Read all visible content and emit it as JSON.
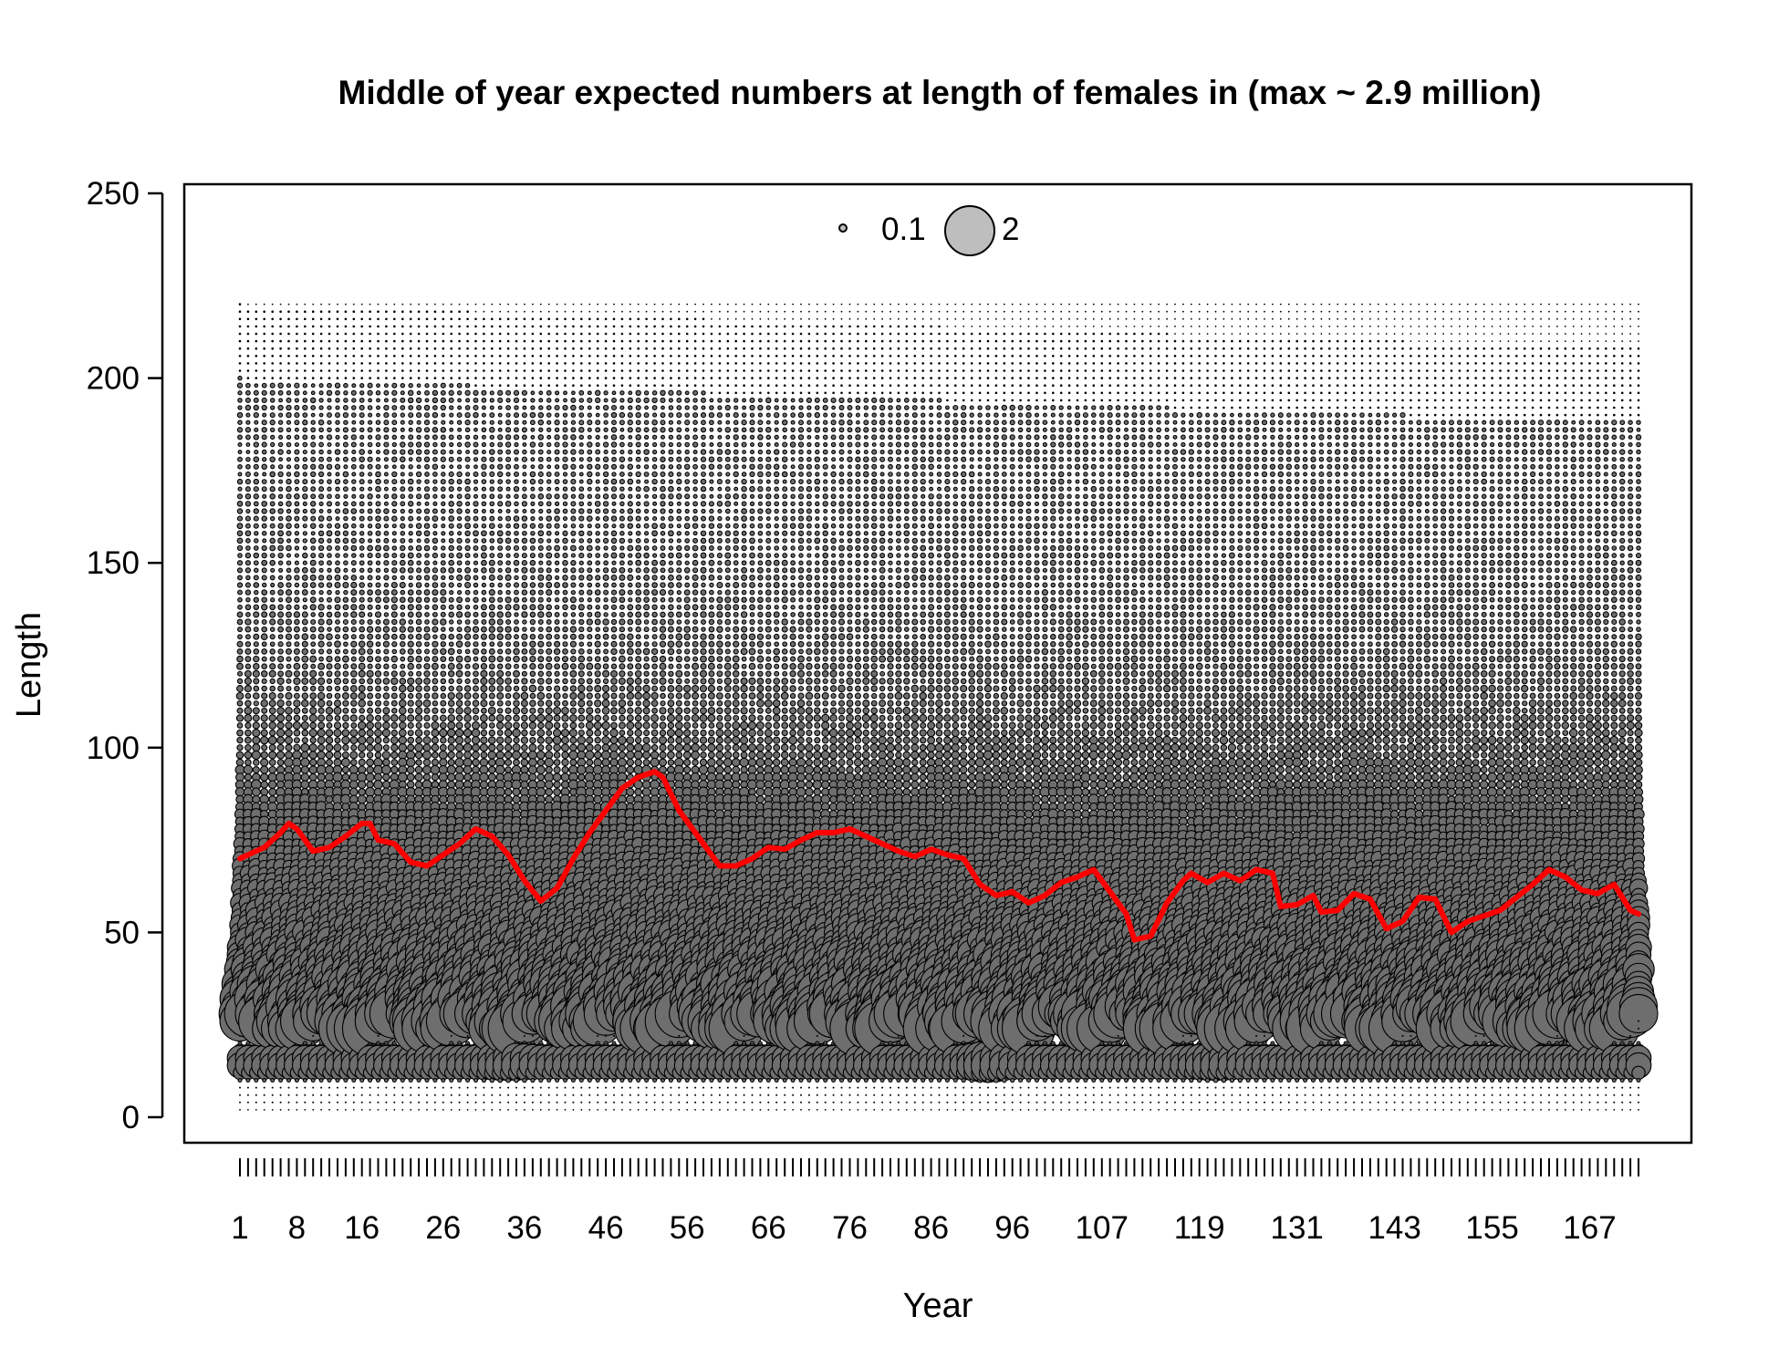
{
  "chart_data": {
    "type": "scatter",
    "subtype": "bubble",
    "title": "Middle of year expected numbers at length of females in (max ~ 2.9 million)",
    "xlabel": "Year",
    "ylabel": "Length",
    "x_tick_labels": [
      "1",
      "8",
      "16",
      "26",
      "36",
      "46",
      "56",
      "66",
      "76",
      "86",
      "96",
      "107",
      "119",
      "131",
      "143",
      "155",
      "167"
    ],
    "y_ticks": [
      0,
      50,
      100,
      150,
      200,
      250
    ],
    "ylim": [
      -5,
      250
    ],
    "n_years": 173,
    "length_bin_range": [
      2,
      220
    ],
    "length_bin_width": 2,
    "legend": {
      "placement": "top-center",
      "entries": [
        {
          "label": "0.1",
          "value": 0.1
        },
        {
          "label": "2",
          "value": 2
        }
      ]
    },
    "mean_length_series": {
      "name": "",
      "color": "#ff0000",
      "points": [
        [
          1,
          70
        ],
        [
          4,
          73
        ],
        [
          6,
          77
        ],
        [
          7,
          79.5
        ],
        [
          8,
          78
        ],
        [
          10,
          72
        ],
        [
          12,
          73
        ],
        [
          14,
          76
        ],
        [
          16,
          79.5
        ],
        [
          17,
          79.5
        ],
        [
          18,
          75
        ],
        [
          20,
          74
        ],
        [
          22,
          69
        ],
        [
          24,
          68
        ],
        [
          26,
          71
        ],
        [
          28,
          74
        ],
        [
          30,
          78
        ],
        [
          32,
          76
        ],
        [
          34,
          71
        ],
        [
          36,
          64
        ],
        [
          38,
          58.5
        ],
        [
          40,
          62
        ],
        [
          42,
          70
        ],
        [
          44,
          77
        ],
        [
          46,
          83
        ],
        [
          48,
          89
        ],
        [
          50,
          92
        ],
        [
          52,
          93.5
        ],
        [
          53,
          92
        ],
        [
          55,
          83
        ],
        [
          56,
          80
        ],
        [
          58,
          74
        ],
        [
          60,
          68
        ],
        [
          62,
          68
        ],
        [
          64,
          70
        ],
        [
          66,
          73
        ],
        [
          68,
          72.5
        ],
        [
          70,
          75
        ],
        [
          72,
          77
        ],
        [
          74,
          77
        ],
        [
          76,
          78
        ],
        [
          78,
          76
        ],
        [
          80,
          74
        ],
        [
          82,
          72
        ],
        [
          84,
          70.5
        ],
        [
          86,
          72.5
        ],
        [
          88,
          71
        ],
        [
          90,
          70
        ],
        [
          92,
          63
        ],
        [
          94,
          60
        ],
        [
          96,
          61
        ],
        [
          98,
          58
        ],
        [
          100,
          60
        ],
        [
          102,
          63.5
        ],
        [
          104,
          65
        ],
        [
          106,
          67
        ],
        [
          108,
          61
        ],
        [
          110,
          55
        ],
        [
          111,
          48
        ],
        [
          113,
          49
        ],
        [
          115,
          58
        ],
        [
          117,
          64
        ],
        [
          118,
          66
        ],
        [
          120,
          63.5
        ],
        [
          122,
          66
        ],
        [
          124,
          64
        ],
        [
          126,
          67
        ],
        [
          128,
          66
        ],
        [
          129,
          57
        ],
        [
          131,
          57.5
        ],
        [
          133,
          60
        ],
        [
          134,
          55.5
        ],
        [
          136,
          56
        ],
        [
          138,
          60.5
        ],
        [
          140,
          59
        ],
        [
          142,
          51
        ],
        [
          144,
          53
        ],
        [
          146,
          59.5
        ],
        [
          148,
          59
        ],
        [
          150,
          50
        ],
        [
          152,
          53
        ],
        [
          154,
          54.5
        ],
        [
          156,
          56
        ],
        [
          158,
          59.5
        ],
        [
          160,
          63
        ],
        [
          162,
          67
        ],
        [
          164,
          65
        ],
        [
          166,
          61.5
        ],
        [
          168,
          60.5
        ],
        [
          170,
          63
        ],
        [
          172,
          56
        ],
        [
          173,
          55
        ]
      ]
    }
  }
}
